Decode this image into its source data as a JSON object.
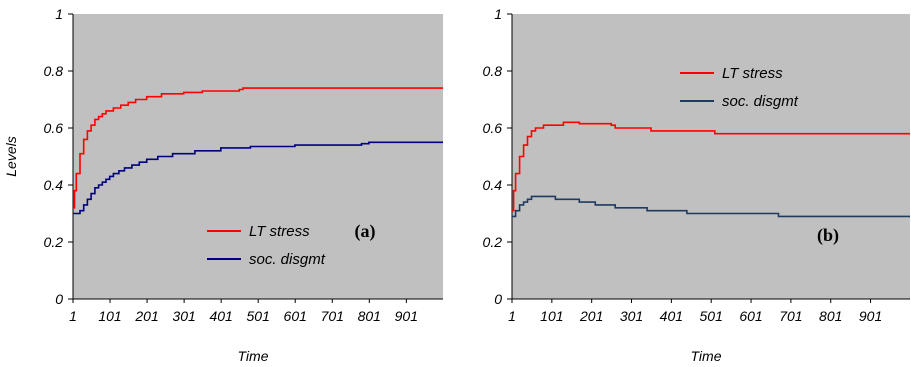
{
  "chart_data": [
    {
      "type": "line",
      "panel_label": "(a)",
      "ylabel": "Levels",
      "xlabel": "Time",
      "ylim": [
        0,
        1
      ],
      "xlim": [
        1,
        1000
      ],
      "yticks": [
        "0",
        "0.2",
        "0.4",
        "0.6",
        "0.8",
        "1"
      ],
      "xticks": [
        "1",
        "101",
        "201",
        "301",
        "401",
        "501",
        "601",
        "701",
        "801",
        "901"
      ],
      "plot_background": "#c0c0c0",
      "grid": false,
      "legend_position": "lower-right",
      "series": [
        {
          "name": "LT stress",
          "color": "#ff0000",
          "points": [
            [
              1,
              0.32
            ],
            [
              5,
              0.38
            ],
            [
              10,
              0.44
            ],
            [
              20,
              0.51
            ],
            [
              30,
              0.56
            ],
            [
              40,
              0.59
            ],
            [
              50,
              0.61
            ],
            [
              60,
              0.63
            ],
            [
              70,
              0.64
            ],
            [
              80,
              0.65
            ],
            [
              90,
              0.66
            ],
            [
              100,
              0.66
            ],
            [
              110,
              0.67
            ],
            [
              130,
              0.68
            ],
            [
              150,
              0.69
            ],
            [
              170,
              0.7
            ],
            [
              200,
              0.71
            ],
            [
              240,
              0.72
            ],
            [
              300,
              0.725
            ],
            [
              350,
              0.73
            ],
            [
              450,
              0.735
            ],
            [
              460,
              0.74
            ],
            [
              600,
              0.74
            ],
            [
              800,
              0.74
            ],
            [
              1000,
              0.74
            ]
          ]
        },
        {
          "name": "soc. disgmt",
          "color": "#000080",
          "points": [
            [
              1,
              0.3
            ],
            [
              10,
              0.3
            ],
            [
              20,
              0.31
            ],
            [
              30,
              0.33
            ],
            [
              40,
              0.35
            ],
            [
              50,
              0.37
            ],
            [
              60,
              0.39
            ],
            [
              70,
              0.4
            ],
            [
              80,
              0.41
            ],
            [
              90,
              0.42
            ],
            [
              100,
              0.43
            ],
            [
              110,
              0.44
            ],
            [
              125,
              0.45
            ],
            [
              140,
              0.46
            ],
            [
              160,
              0.47
            ],
            [
              180,
              0.48
            ],
            [
              200,
              0.49
            ],
            [
              230,
              0.5
            ],
            [
              270,
              0.51
            ],
            [
              330,
              0.52
            ],
            [
              400,
              0.53
            ],
            [
              480,
              0.535
            ],
            [
              600,
              0.54
            ],
            [
              780,
              0.545
            ],
            [
              800,
              0.55
            ],
            [
              1000,
              0.55
            ]
          ]
        }
      ]
    },
    {
      "type": "line",
      "panel_label": "(b)",
      "ylabel": "",
      "xlabel": "Time",
      "ylim": [
        0,
        1
      ],
      "xlim": [
        1,
        1000
      ],
      "yticks": [
        "0",
        "0.2",
        "0.4",
        "0.6",
        "0.8",
        "1"
      ],
      "xticks": [
        "1",
        "101",
        "201",
        "301",
        "401",
        "501",
        "601",
        "701",
        "801",
        "901"
      ],
      "plot_background": "#c0c0c0",
      "grid": false,
      "legend_position": "top-right",
      "series": [
        {
          "name": "LT stress",
          "color": "#ff0000",
          "points": [
            [
              1,
              0.31
            ],
            [
              5,
              0.38
            ],
            [
              10,
              0.44
            ],
            [
              20,
              0.5
            ],
            [
              30,
              0.54
            ],
            [
              40,
              0.57
            ],
            [
              50,
              0.59
            ],
            [
              60,
              0.6
            ],
            [
              80,
              0.61
            ],
            [
              100,
              0.61
            ],
            [
              130,
              0.62
            ],
            [
              160,
              0.62
            ],
            [
              170,
              0.615
            ],
            [
              250,
              0.61
            ],
            [
              260,
              0.6
            ],
            [
              340,
              0.6
            ],
            [
              350,
              0.59
            ],
            [
              500,
              0.59
            ],
            [
              510,
              0.58
            ],
            [
              700,
              0.58
            ],
            [
              1000,
              0.58
            ]
          ]
        },
        {
          "name": "soc. disgmt",
          "color": "#1f3a5f",
          "points": [
            [
              1,
              0.29
            ],
            [
              10,
              0.31
            ],
            [
              20,
              0.33
            ],
            [
              30,
              0.34
            ],
            [
              40,
              0.35
            ],
            [
              50,
              0.36
            ],
            [
              100,
              0.36
            ],
            [
              110,
              0.35
            ],
            [
              160,
              0.35
            ],
            [
              170,
              0.34
            ],
            [
              200,
              0.34
            ],
            [
              210,
              0.33
            ],
            [
              250,
              0.33
            ],
            [
              260,
              0.32
            ],
            [
              330,
              0.32
            ],
            [
              340,
              0.31
            ],
            [
              430,
              0.31
            ],
            [
              440,
              0.3
            ],
            [
              660,
              0.3
            ],
            [
              670,
              0.29
            ],
            [
              1000,
              0.29
            ]
          ]
        }
      ]
    }
  ]
}
